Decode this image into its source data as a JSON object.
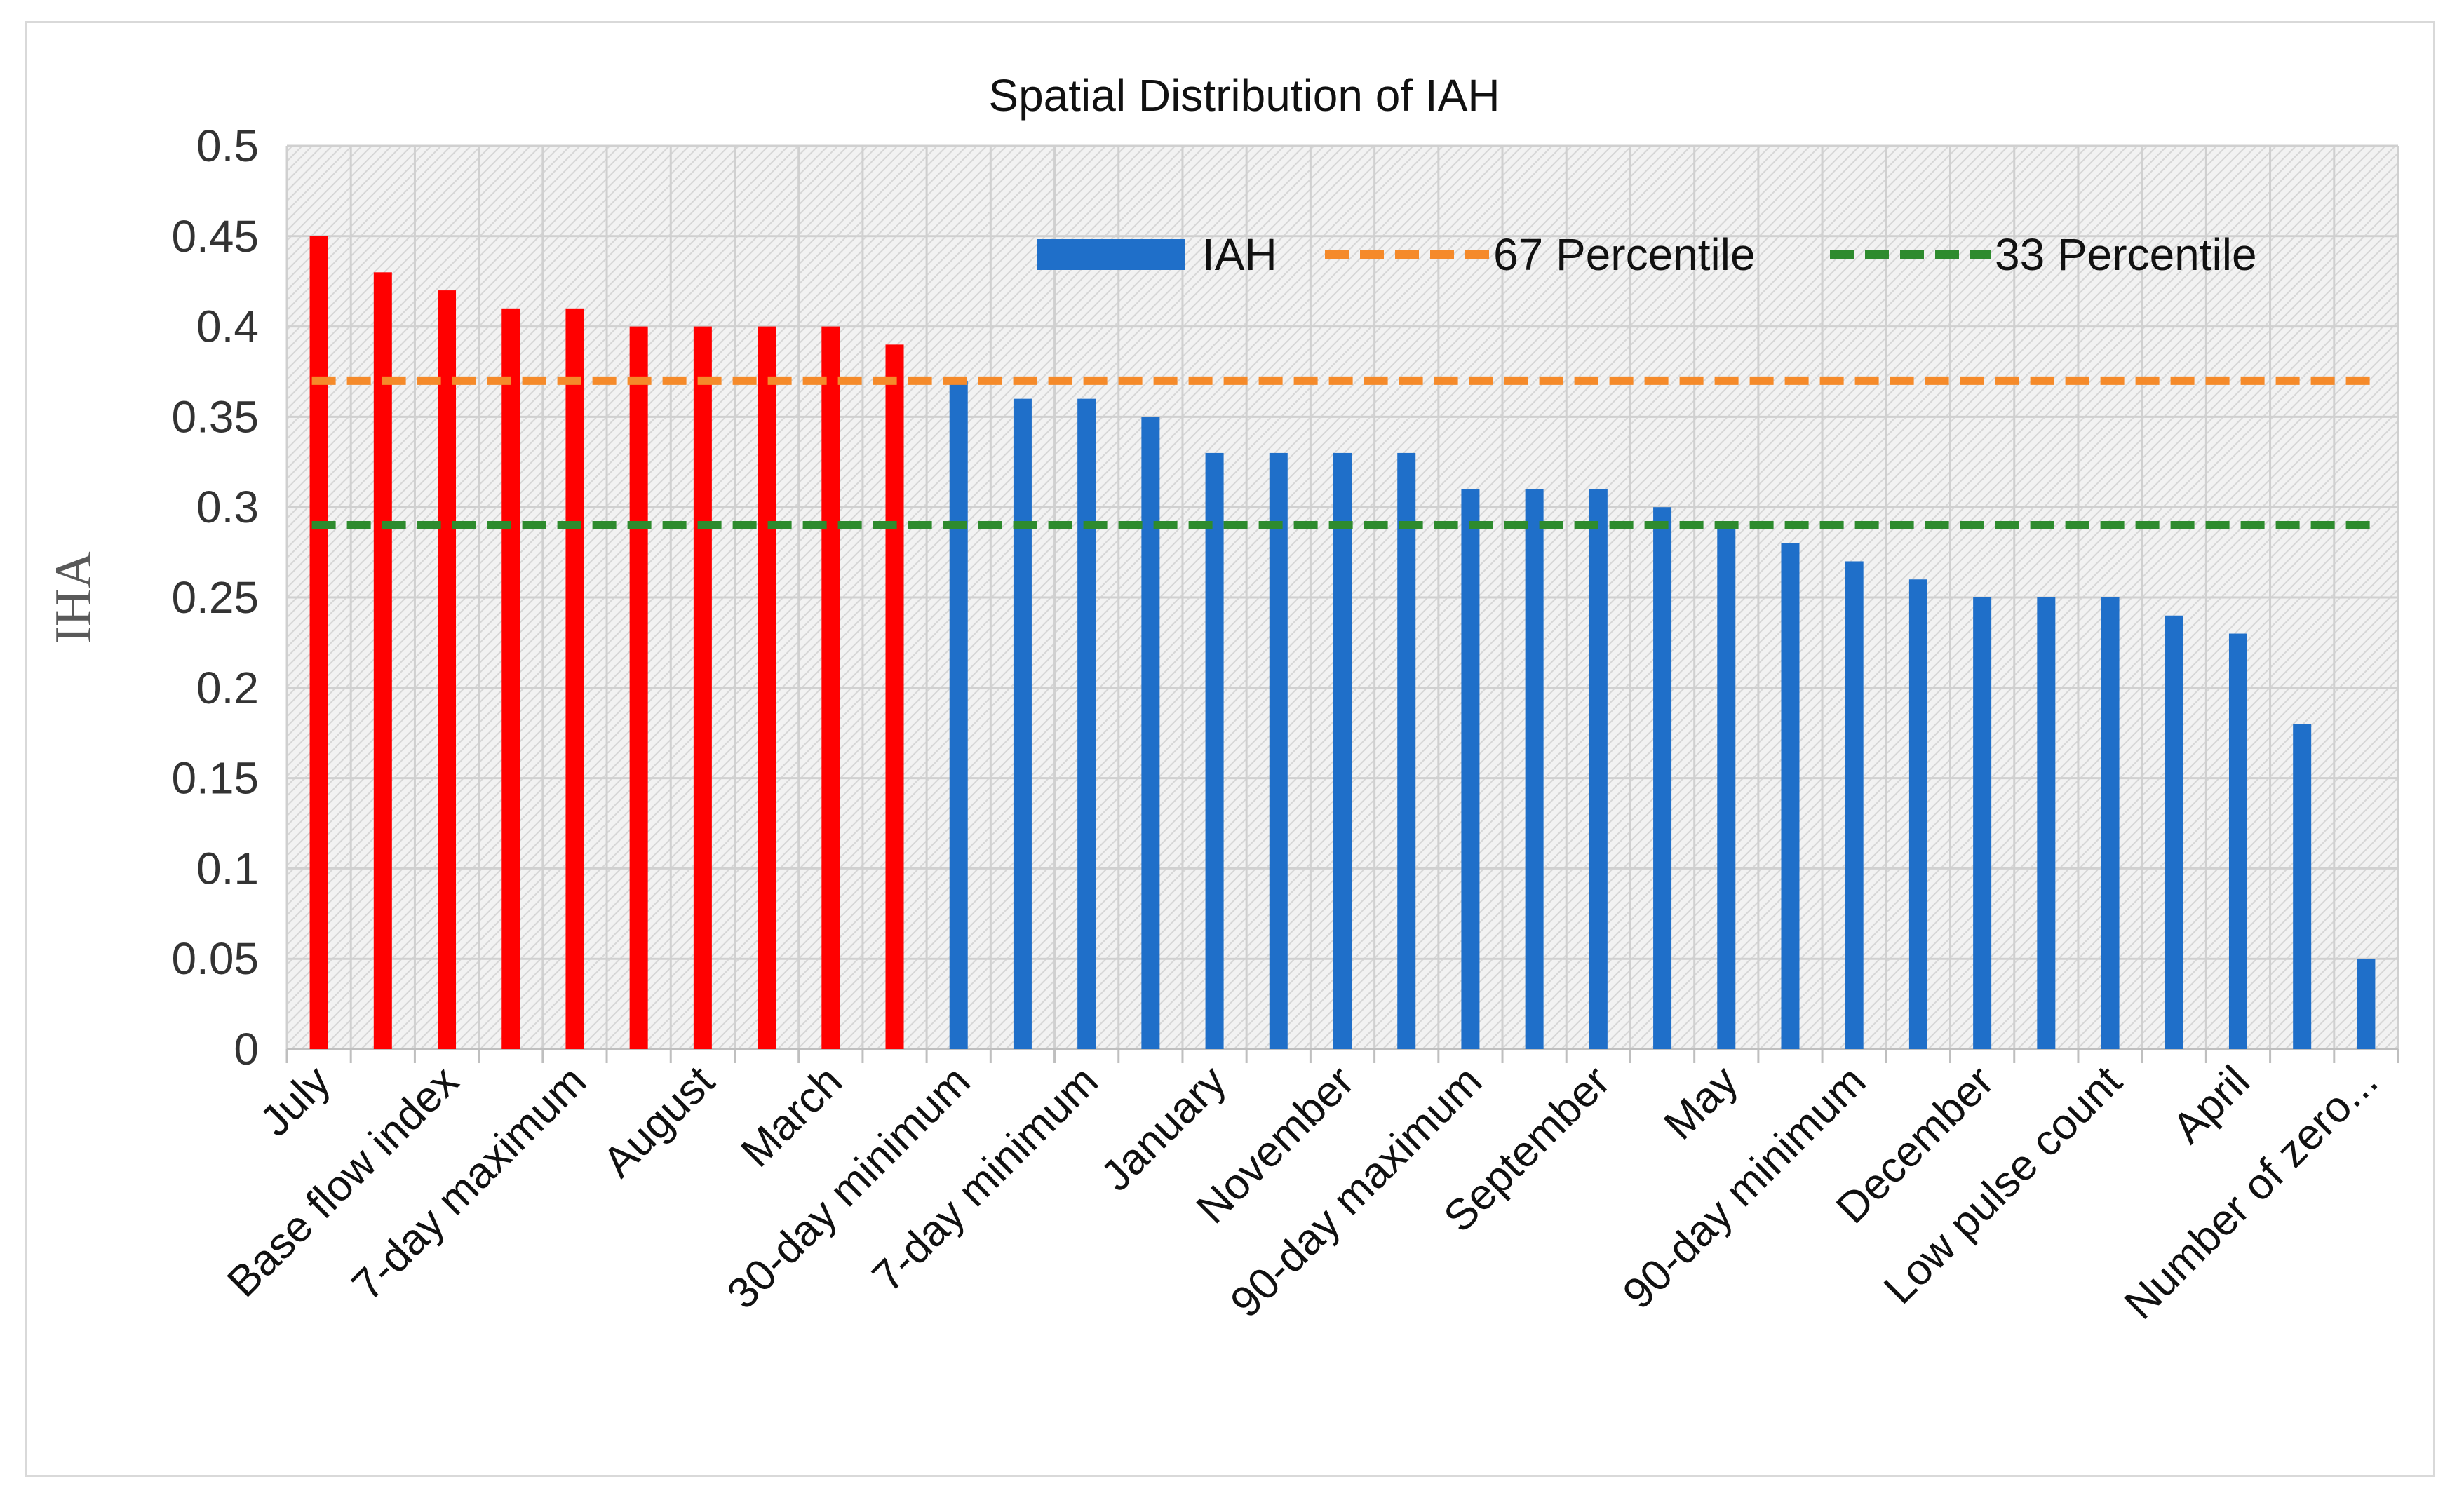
{
  "chart_data": {
    "type": "bar",
    "title": "Spatial  Distribution of IAH",
    "xlabel": "",
    "ylabel": "IHA",
    "ylim": [
      0,
      0.5
    ],
    "yticks": [
      "0",
      "0.05",
      "0.1",
      "0.15",
      "0.2",
      "0.25",
      "0.3",
      "0.35",
      "0.4",
      "0.45",
      "0.5"
    ],
    "categories": [
      "July",
      "",
      "Base flow index",
      "",
      "7-day maximum",
      "",
      "August",
      "",
      "March",
      "",
      "30-day minimum",
      "",
      "7-day minimum",
      "",
      "January",
      "",
      "November",
      "",
      "90-day maximum",
      "",
      "September",
      "",
      "May",
      "",
      "90-day minimum",
      "",
      "December",
      "",
      "Low pulse count",
      "",
      "April",
      "",
      "Number of zero..."
    ],
    "series": [
      {
        "name": "IAH",
        "type": "bar",
        "values": [
          0.45,
          0.43,
          0.42,
          0.41,
          0.41,
          0.4,
          0.4,
          0.4,
          0.4,
          0.39,
          0.37,
          0.36,
          0.36,
          0.35,
          0.33,
          0.33,
          0.33,
          0.33,
          0.31,
          0.31,
          0.31,
          0.3,
          0.29,
          0.28,
          0.27,
          0.26,
          0.25,
          0.25,
          0.25,
          0.24,
          0.23,
          0.18,
          0.05
        ],
        "highlight_count": 10,
        "color": "#1f6fc9",
        "highlight_color": "#ff0000"
      },
      {
        "name": "67 Percentile",
        "type": "line",
        "value": 0.37,
        "color": "#f58a2a",
        "dashed": true
      },
      {
        "name": "33 Percentile",
        "type": "line",
        "value": 0.29,
        "color": "#2e8b2e",
        "dashed": true
      }
    ],
    "legend": "top-right",
    "grid": true
  }
}
